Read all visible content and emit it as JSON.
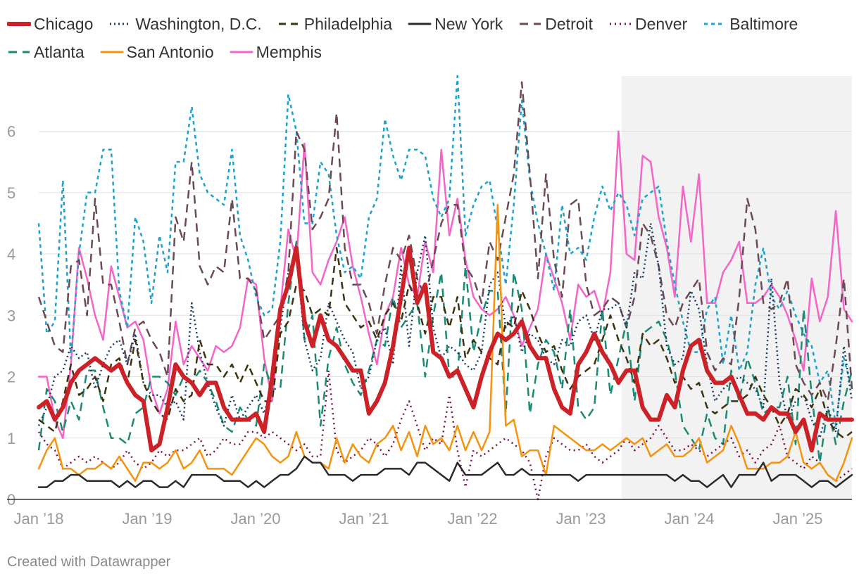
{
  "chart_data": {
    "type": "line",
    "title": "",
    "xlabel": "",
    "ylabel": "",
    "ylim": [
      0,
      6.9
    ],
    "yticks": [
      0,
      1,
      2,
      3,
      4,
      5,
      6
    ],
    "x_tick_labels": [
      "Jan ’18",
      "Jan ’19",
      "Jan ’20",
      "Jan ’21",
      "Jan ’22",
      "Jan ’23",
      "Jan ’24",
      "Jan ’25"
    ],
    "x_tick_years": [
      2018,
      2019,
      2020,
      2021,
      2022,
      2023,
      2024,
      2025
    ],
    "x_start": 2018.0,
    "x_end": 2025.5,
    "highlight_range": [
      2023.375,
      2025.5
    ],
    "highlight_color": "#f2f2f2",
    "series": [
      {
        "name": "Memphis",
        "color": "#f564c8",
        "dash": "none",
        "width": 2.5,
        "values": [
          2.0,
          2.0,
          1.3,
          1.0,
          2.2,
          4.1,
          3.6,
          3.0,
          2.6,
          3.8,
          3.3,
          2.8,
          2.9,
          2.6,
          1.8,
          1.4,
          1.8,
          2.9,
          2.2,
          2.5,
          2.3,
          2.1,
          2.5,
          2.4,
          2.5,
          2.8,
          3.6,
          3.5,
          2.3,
          1.6,
          3.1,
          4.4,
          3.9,
          5.8,
          3.7,
          3.5,
          3.9,
          4.2,
          4.6,
          3.8,
          3.3,
          2.7,
          2.2,
          3.0,
          3.3,
          4.1,
          3.5,
          3.3,
          4.2,
          3.7,
          5.7,
          4.3,
          4.9,
          3.9,
          3.3,
          3.1,
          3.0,
          3.1,
          3.3,
          3.0,
          2.5,
          2.8,
          3.1,
          4.0,
          3.6,
          3.2,
          2.6,
          3.5,
          3.3,
          3.4,
          3.0,
          3.7,
          6.0,
          4.0,
          3.9,
          5.6,
          5.5,
          4.6,
          4.1,
          3.3,
          5.1,
          4.2,
          5.3,
          3.2,
          3.2,
          3.7,
          3.9,
          4.2,
          3.2,
          3.2,
          3.3,
          3.5,
          3.3,
          3.0,
          2.6,
          2.1,
          3.6,
          2.9,
          3.3,
          4.7,
          3.1,
          2.9
        ]
      },
      {
        "name": "Baltimore",
        "color": "#1ca2cc",
        "dash": "5,5",
        "width": 2.5,
        "values": [
          4.5,
          2.7,
          2.9,
          5.2,
          2.3,
          4.0,
          5.0,
          5.0,
          5.7,
          5.7,
          3.4,
          2.8,
          4.6,
          4.2,
          3.2,
          4.3,
          3.7,
          5.5,
          5.5,
          6.4,
          5.3,
          5.0,
          4.9,
          4.8,
          5.7,
          4.3,
          3.9,
          3.3,
          3.0,
          3.1,
          4.2,
          6.6,
          6.0,
          4.5,
          4.5,
          5.5,
          5.3,
          4.3,
          3.7,
          3.8,
          3.6,
          4.6,
          4.9,
          6.2,
          5.6,
          5.2,
          5.7,
          5.7,
          5.6,
          4.9,
          4.6,
          4.9,
          6.9,
          4.3,
          4.8,
          5.1,
          5.2,
          4.4,
          3.5,
          4.8,
          6.5,
          5.2,
          4.5,
          4.0,
          3.4,
          4.8,
          4.0,
          4.1,
          3.9,
          4.6,
          5.1,
          4.7,
          5.0,
          4.8,
          4.3,
          4.9,
          5.0,
          5.1,
          4.2,
          3.5,
          2.9,
          2.4,
          2.4,
          3.1,
          3.3,
          2.2,
          3.0,
          2.1,
          2.4,
          3.5,
          4.1,
          3.3,
          3.1,
          3.4,
          3.0,
          2.7,
          2.5,
          1.9,
          2.1,
          1.2,
          2.3,
          1.8
        ]
      },
      {
        "name": "Detroit",
        "color": "#6b4a55",
        "dash": "12,8",
        "width": 2.5,
        "values": [
          3.3,
          2.9,
          2.5,
          2.4,
          3.8,
          3.9,
          3.0,
          4.9,
          3.5,
          3.5,
          2.9,
          2.2,
          2.8,
          2.9,
          2.6,
          2.4,
          2.0,
          4.6,
          4.2,
          5.5,
          3.8,
          3.5,
          3.8,
          3.7,
          4.9,
          3.6,
          3.6,
          3.4,
          2.6,
          2.8,
          3.0,
          3.7,
          6.0,
          5.7,
          4.4,
          4.6,
          4.9,
          6.3,
          4.1,
          3.5,
          3.5,
          3.2,
          2.7,
          3.5,
          4.1,
          3.9,
          4.3,
          3.6,
          3.3,
          3.9,
          4.5,
          4.8,
          4.8,
          3.8,
          3.6,
          3.2,
          4.2,
          3.9,
          4.6,
          5.3,
          6.8,
          5.3,
          3.6,
          5.3,
          3.9,
          3.3,
          4.8,
          4.9,
          3.5,
          3.0,
          3.1,
          3.3,
          3.2,
          2.8,
          3.3,
          4.5,
          4.3,
          3.8,
          3.0,
          2.8,
          3.2,
          3.4,
          3.6,
          2.4,
          2.1,
          2.3,
          2.2,
          3.3,
          4.9,
          4.4,
          3.2,
          3.1,
          3.2,
          3.6,
          2.2,
          1.9,
          1.7,
          1.9,
          1.6,
          2.5,
          3.6,
          1.8
        ]
      },
      {
        "name": "Atlanta",
        "color": "#1b8a73",
        "dash": "12,8",
        "width": 2.5,
        "values": [
          0.8,
          1.8,
          1.6,
          1.1,
          1.6,
          1.3,
          2.1,
          2.1,
          1.5,
          1.0,
          1.0,
          0.9,
          1.4,
          1.5,
          2.0,
          2.0,
          1.9,
          1.7,
          2.0,
          1.9,
          2.1,
          1.9,
          1.6,
          1.2,
          1.1,
          1.5,
          1.3,
          1.2,
          2.2,
          1.8,
          1.8,
          3.2,
          4.2,
          2.6,
          3.0,
          1.2,
          2.3,
          2.8,
          2.2,
          1.9,
          1.7,
          2.1,
          2.6,
          2.5,
          3.3,
          2.8,
          3.0,
          3.2,
          2.0,
          3.0,
          3.7,
          2.0,
          2.0,
          3.8,
          2.4,
          3.0,
          3.4,
          3.4,
          1.4,
          3.7,
          3.1,
          1.4,
          2.2,
          2.6,
          2.4,
          1.8,
          3.1,
          1.5,
          1.3,
          1.5,
          3.1,
          1.7,
          2.3,
          2.9,
          1.6,
          2.7,
          2.8,
          2.9,
          2.6,
          2.1,
          1.2,
          1.0,
          0.8,
          1.4,
          1.0,
          0.9,
          2.1,
          1.6,
          2.3,
          1.9,
          1.4,
          1.5,
          1.5,
          2.0,
          0.9,
          3.1,
          1.7,
          0.6,
          1.5,
          0.9,
          1.6,
          2.1
        ]
      },
      {
        "name": "Washington, D.C.",
        "color": "#1a3b66",
        "dash": "2,4",
        "width": 2.5,
        "values": [
          1.2,
          1.5,
          2.0,
          2.1,
          2.5,
          2.3,
          2.4,
          1.8,
          2.2,
          2.5,
          2.6,
          2.2,
          2.7,
          1.9,
          1.7,
          1.7,
          1.5,
          1.6,
          1.3,
          3.2,
          2.4,
          1.9,
          1.5,
          1.2,
          1.7,
          1.3,
          1.5,
          1.7,
          1.4,
          1.9,
          2.8,
          3.7,
          4.0,
          2.6,
          2.1,
          2.3,
          3.2,
          2.9,
          2.6,
          2.4,
          1.8,
          2.0,
          2.6,
          2.8,
          2.2,
          3.8,
          2.5,
          3.7,
          4.3,
          2.8,
          2.3,
          2.5,
          2.4,
          2.2,
          2.1,
          2.4,
          3.5,
          3.7,
          2.8,
          3.0,
          2.4,
          2.7,
          2.6,
          2.3,
          2.2,
          2.6,
          2.5,
          2.9,
          3.0,
          2.6,
          3.1,
          3.1,
          3.2,
          2.8,
          3.7,
          3.6,
          4.5,
          3.8,
          2.5,
          2.2,
          2.3,
          3.4,
          3.1,
          2.2,
          1.6,
          1.8,
          1.9,
          2.0,
          1.9,
          1.8,
          1.5,
          3.6,
          1.9,
          1.3,
          1.6,
          1.7,
          1.3,
          1.0,
          1.5,
          1.1,
          2.5,
          1.6
        ]
      },
      {
        "name": "Philadelphia",
        "color": "#3d3310",
        "dash": "10,7",
        "width": 2.5,
        "values": [
          1.3,
          1.2,
          1.1,
          1.6,
          2.2,
          1.7,
          1.8,
          2.0,
          1.6,
          2.2,
          2.3,
          1.9,
          2.6,
          1.9,
          1.6,
          1.4,
          1.3,
          1.8,
          1.6,
          1.7,
          2.6,
          2.2,
          2.2,
          2.0,
          2.2,
          1.9,
          2.2,
          1.9,
          1.6,
          1.6,
          2.7,
          2.9,
          3.5,
          3.4,
          3.0,
          3.1,
          3.0,
          4.1,
          3.2,
          3.0,
          2.8,
          2.9,
          2.6,
          3.0,
          3.2,
          2.9,
          3.5,
          3.2,
          2.7,
          3.3,
          3.3,
          2.8,
          3.3,
          2.3,
          2.6,
          2.4,
          2.3,
          2.2,
          2.9,
          2.8,
          3.4,
          3.1,
          2.7,
          2.4,
          2.5,
          2.1,
          1.8,
          2.0,
          2.1,
          2.2,
          2.6,
          3.0,
          2.6,
          2.3,
          1.9,
          2.7,
          2.5,
          2.6,
          2.3,
          1.9,
          2.0,
          1.8,
          1.9,
          1.5,
          1.4,
          1.5,
          1.6,
          1.6,
          1.7,
          2.0,
          1.7,
          1.5,
          1.2,
          1.4,
          1.8,
          1.7,
          1.5,
          1.8,
          1.3,
          1.1,
          1.0,
          1.1
        ]
      },
      {
        "name": "Denver",
        "color": "#7a0e4f",
        "dash": "2,5",
        "width": 2.5,
        "values": [
          1.1,
          0.9,
          0.8,
          0.5,
          0.6,
          0.7,
          0.6,
          0.7,
          0.6,
          0.5,
          0.6,
          0.8,
          0.6,
          0.5,
          0.6,
          0.8,
          0.7,
          0.8,
          0.8,
          0.9,
          1.0,
          0.7,
          0.8,
          1.0,
          0.9,
          0.9,
          1.1,
          1.1,
          1.0,
          1.1,
          1.0,
          0.9,
          0.8,
          0.9,
          0.7,
          0.7,
          2.1,
          0.8,
          0.6,
          0.7,
          0.8,
          1.0,
          0.9,
          0.7,
          0.9,
          1.3,
          1.6,
          1.2,
          0.8,
          1.0,
          0.9,
          1.7,
          0.8,
          0.2,
          0.8,
          0.7,
          0.8,
          0.9,
          1.0,
          0.9,
          0.8,
          0.6,
          0.0,
          0.7,
          1.0,
          0.9,
          0.8,
          0.8,
          0.9,
          0.7,
          0.6,
          0.7,
          0.8,
          1.0,
          0.8,
          0.9,
          1.0,
          1.2,
          1.0,
          0.8,
          0.8,
          0.9,
          0.8,
          0.7,
          0.8,
          0.9,
          1.0,
          0.7,
          0.8,
          0.6,
          0.8,
          0.9,
          1.2,
          0.7,
          0.6,
          0.5,
          0.7,
          0.6,
          0.4,
          0.3,
          0.4,
          0.5
        ]
      },
      {
        "name": "San Antonio",
        "color": "#f5930f",
        "dash": "none",
        "width": 2.5,
        "values": [
          0.5,
          0.8,
          1.0,
          0.5,
          0.5,
          0.4,
          0.5,
          0.5,
          0.6,
          0.5,
          0.7,
          0.5,
          0.3,
          0.6,
          0.6,
          0.5,
          0.6,
          0.8,
          0.5,
          0.6,
          0.8,
          0.5,
          0.5,
          0.5,
          0.4,
          0.6,
          0.8,
          1.0,
          0.9,
          0.7,
          0.6,
          0.7,
          1.1,
          0.7,
          0.6,
          0.6,
          0.5,
          1.0,
          0.6,
          0.9,
          0.7,
          0.6,
          0.9,
          1.0,
          1.2,
          0.8,
          1.1,
          0.7,
          1.2,
          0.9,
          1.0,
          0.8,
          1.2,
          0.8,
          1.1,
          0.8,
          1.1,
          4.8,
          1.2,
          1.3,
          0.7,
          0.8,
          0.8,
          0.4,
          1.2,
          1.1,
          1.0,
          0.9,
          0.8,
          0.8,
          0.9,
          0.8,
          0.9,
          1.0,
          0.9,
          1.0,
          0.7,
          0.8,
          0.9,
          0.7,
          0.7,
          0.8,
          1.0,
          0.6,
          0.7,
          0.8,
          1.2,
          0.9,
          0.5,
          0.5,
          0.5,
          0.6,
          0.6,
          0.7,
          1.1,
          0.6,
          0.5,
          0.6,
          0.4,
          0.3,
          0.6,
          1.0
        ]
      },
      {
        "name": "New York",
        "color": "#2b2b2b",
        "dash": "none",
        "width": 2.5,
        "values": [
          0.2,
          0.2,
          0.3,
          0.3,
          0.4,
          0.4,
          0.3,
          0.3,
          0.3,
          0.3,
          0.2,
          0.3,
          0.2,
          0.3,
          0.3,
          0.2,
          0.2,
          0.3,
          0.2,
          0.4,
          0.4,
          0.4,
          0.4,
          0.3,
          0.3,
          0.3,
          0.2,
          0.3,
          0.2,
          0.3,
          0.4,
          0.4,
          0.5,
          0.7,
          0.6,
          0.6,
          0.4,
          0.4,
          0.4,
          0.3,
          0.4,
          0.4,
          0.4,
          0.5,
          0.5,
          0.5,
          0.4,
          0.6,
          0.6,
          0.5,
          0.4,
          0.3,
          0.6,
          0.4,
          0.4,
          0.4,
          0.5,
          0.6,
          0.4,
          0.4,
          0.5,
          0.4,
          0.4,
          0.4,
          0.4,
          0.4,
          0.4,
          0.3,
          0.4,
          0.4,
          0.4,
          0.4,
          0.4,
          0.4,
          0.4,
          0.4,
          0.4,
          0.4,
          0.4,
          0.3,
          0.4,
          0.3,
          0.3,
          0.2,
          0.3,
          0.4,
          0.2,
          0.4,
          0.4,
          0.4,
          0.6,
          0.3,
          0.4,
          0.4,
          0.4,
          0.3,
          0.2,
          0.3,
          0.3,
          0.2,
          0.3,
          0.4
        ]
      },
      {
        "name": "Chicago",
        "color": "#cc2127",
        "dash": "none",
        "width": 6,
        "values": [
          1.5,
          1.6,
          1.3,
          1.5,
          1.9,
          2.1,
          2.2,
          2.3,
          2.2,
          2.1,
          2.2,
          1.9,
          1.7,
          1.6,
          0.8,
          0.9,
          1.5,
          2.2,
          2.0,
          1.9,
          1.7,
          1.9,
          1.9,
          1.5,
          1.3,
          1.3,
          1.3,
          1.4,
          1.1,
          2.0,
          3.1,
          3.5,
          4.1,
          2.9,
          2.5,
          3.0,
          2.6,
          2.5,
          2.3,
          2.1,
          2.1,
          1.4,
          1.6,
          1.9,
          2.5,
          3.3,
          4.1,
          3.2,
          3.5,
          2.4,
          2.3,
          2.0,
          2.1,
          1.8,
          1.5,
          2.0,
          2.4,
          2.7,
          2.6,
          2.7,
          2.9,
          2.5,
          2.3,
          2.3,
          1.8,
          1.5,
          1.4,
          2.2,
          2.4,
          2.7,
          2.4,
          2.2,
          1.9,
          2.1,
          2.1,
          1.5,
          1.3,
          1.3,
          1.7,
          1.5,
          2.1,
          2.5,
          2.6,
          2.1,
          1.9,
          1.9,
          2.0,
          1.7,
          1.4,
          1.4,
          1.3,
          1.5,
          1.4,
          1.4,
          1.1,
          1.3,
          0.8,
          1.4,
          1.3,
          1.3,
          1.3,
          1.3
        ]
      }
    ],
    "legend_order": [
      "Chicago",
      "Washington, D.C.",
      "Philadelphia",
      "New York",
      "Detroit",
      "Denver",
      "Baltimore",
      "Atlanta",
      "San Antonio",
      "Memphis"
    ],
    "legend_placement": "top"
  },
  "legend_rows": [
    [
      {
        "label": "Chicago",
        "color": "#cc2127",
        "dash": "none",
        "width": 6
      },
      {
        "label": "Washington, D.C.",
        "color": "#1a3b66",
        "dash": "2,4",
        "width": 3
      },
      {
        "label": "Philadelphia",
        "color": "#3d3310",
        "dash": "10,7",
        "width": 3
      },
      {
        "label": "New York",
        "color": "#2b2b2b",
        "dash": "none",
        "width": 3
      },
      {
        "label": "Detroit",
        "color": "#6b4a55",
        "dash": "12,8",
        "width": 3
      },
      {
        "label": "Denver",
        "color": "#7a0e4f",
        "dash": "2,5",
        "width": 3
      },
      {
        "label": "Baltimore",
        "color": "#1ca2cc",
        "dash": "5,5",
        "width": 3
      }
    ],
    [
      {
        "label": "Atlanta",
        "color": "#1b8a73",
        "dash": "12,8",
        "width": 3
      },
      {
        "label": "San Antonio",
        "color": "#f5930f",
        "dash": "none",
        "width": 3
      },
      {
        "label": "Memphis",
        "color": "#f564c8",
        "dash": "none",
        "width": 3
      }
    ]
  ],
  "footer": {
    "credit": "Created with Datawrapper"
  }
}
